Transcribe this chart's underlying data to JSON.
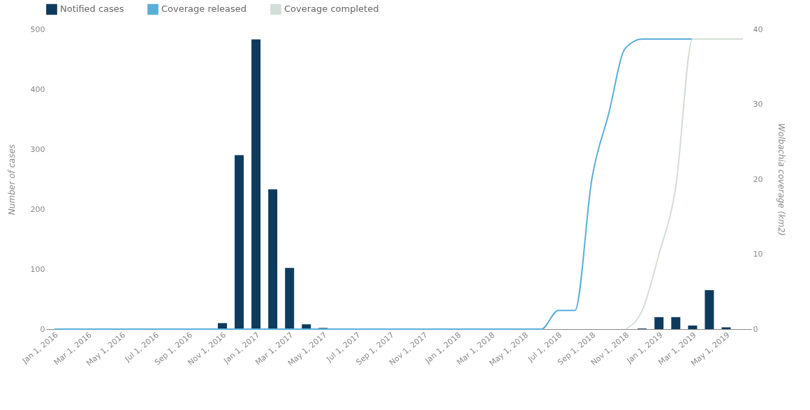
{
  "chart_data": {
    "type": "bar",
    "categories": [
      "Jan 1, 2016",
      null,
      "Mar 1, 2016",
      null,
      "May 1, 2016",
      null,
      "Jul 1, 2016",
      null,
      "Sep 1, 2016",
      null,
      "Nov 1, 2016",
      null,
      "Jan 1, 2017",
      null,
      "Mar 1, 2017",
      null,
      "May 1, 2017",
      null,
      "Jul 1, 2017",
      null,
      "Sep 1, 2017",
      null,
      "Nov 1, 2017",
      null,
      "Jan 1, 2018",
      null,
      "Mar 1, 2018",
      null,
      "May 1, 2018",
      null,
      "Jul 1, 2018",
      null,
      "Sep 1, 2018",
      null,
      "Nov 1, 2018",
      null,
      "Jan 1, 2019",
      null,
      "Mar 1, 2019",
      null,
      "May 1, 2019",
      null
    ],
    "series": [
      {
        "name": "Notified cases",
        "color": "#0e3b5d",
        "values": [
          0,
          0,
          0,
          0,
          0,
          0,
          0,
          0,
          0,
          0,
          10,
          290,
          483,
          233,
          102,
          8,
          2,
          0,
          0,
          0,
          0,
          0,
          0,
          0,
          1,
          0,
          0,
          0,
          0,
          0,
          0,
          0,
          0,
          0,
          0,
          1,
          20,
          20,
          6,
          65,
          3,
          null
        ]
      },
      {
        "name": "Coverage released",
        "type": "line",
        "axis": "y2",
        "color": "#5aaed8",
        "values": [
          0,
          0,
          0,
          0,
          0,
          0,
          0,
          0,
          0,
          0,
          0,
          0,
          0,
          0,
          0,
          0,
          0,
          0,
          0,
          0,
          0,
          0,
          0,
          0,
          0,
          0,
          0,
          0,
          0,
          0,
          2.5,
          2.5,
          20,
          28.7,
          37.5,
          38.7,
          38.7,
          38.7,
          38.7,
          null,
          null,
          null
        ]
      },
      {
        "name": "Coverage completed",
        "type": "line",
        "axis": "y2",
        "color": "#d3ded6",
        "values": [
          null,
          null,
          null,
          null,
          null,
          null,
          null,
          null,
          null,
          null,
          null,
          null,
          null,
          null,
          null,
          null,
          null,
          null,
          null,
          null,
          null,
          null,
          null,
          null,
          null,
          null,
          null,
          null,
          null,
          null,
          null,
          null,
          null,
          null,
          0,
          2.5,
          10,
          19,
          38.7,
          38.7,
          38.7,
          38.7
        ]
      }
    ],
    "ylabel": "Number of cases",
    "y2label": "Wolbachia coverage (km2)",
    "ylim": [
      0,
      500
    ],
    "yticks": [
      0,
      100,
      200,
      300,
      400,
      500
    ],
    "y2lim": [
      0,
      40
    ],
    "y2ticks": [
      0,
      10,
      20,
      30,
      40
    ],
    "legend": "top left"
  }
}
